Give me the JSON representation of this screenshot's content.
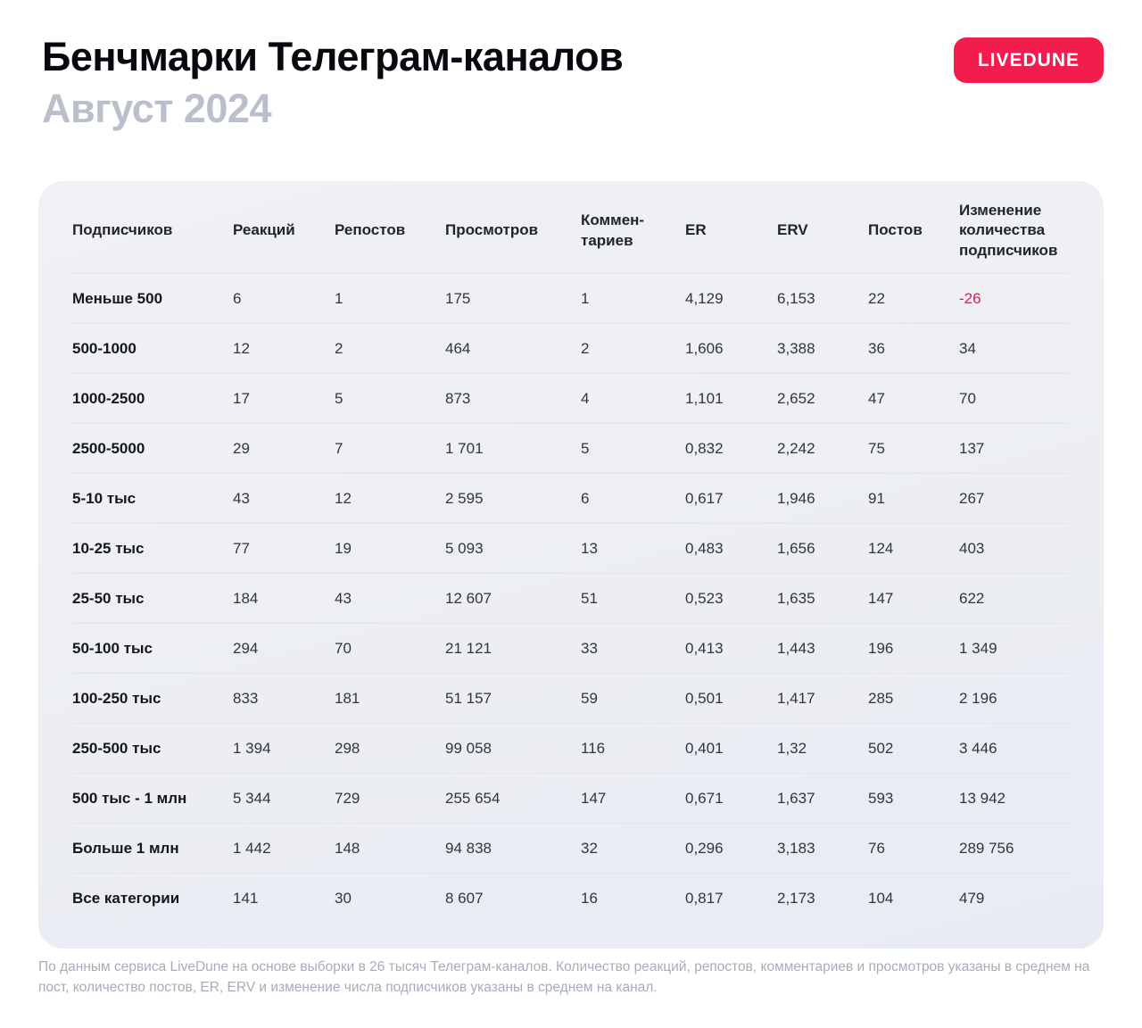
{
  "header": {
    "title": "Бенчмарки Телеграм-каналов",
    "subtitle": "Август 2024",
    "badge_label": "LIVEDUNE"
  },
  "colors": {
    "accent_red": "#f21c4d",
    "negative_value": "#e8174b",
    "panel_background": "#edeff3",
    "subtitle_gray": "#b9bfcb",
    "footnote_gray": "#a6acb9"
  },
  "footer": {
    "note": "По данным сервиса LiveDune на основе выборки в 26 тысяч Телеграм-каналов. Количество реакций, репостов, комментариев и просмотров указаны в среднем на пост, количество постов, ER, ERV и изменение числа подписчиков указаны в среднем на канал."
  },
  "chart_data": {
    "type": "table",
    "title": "Бенчмарки Телеграм-каналов",
    "subtitle": "Август 2024",
    "columns": [
      "Подписчиков",
      "Реакций",
      "Репостов",
      "Просмотров",
      "Коммен-тариев",
      "ER",
      "ERV",
      "Постов",
      "Изменение количества подписчиков"
    ],
    "rows": [
      [
        "Меньше 500",
        "6",
        "1",
        "175",
        "1",
        "4,129",
        "6,153",
        "22",
        "-26"
      ],
      [
        "500-1000",
        "12",
        "2",
        "464",
        "2",
        "1,606",
        "3,388",
        "36",
        "34"
      ],
      [
        "1000-2500",
        "17",
        "5",
        "873",
        "4",
        "1,101",
        "2,652",
        "47",
        "70"
      ],
      [
        "2500-5000",
        "29",
        "7",
        "1 701",
        "5",
        "0,832",
        "2,242",
        "75",
        "137"
      ],
      [
        "5-10 тыс",
        "43",
        "12",
        "2 595",
        "6",
        "0,617",
        "1,946",
        "91",
        "267"
      ],
      [
        "10-25 тыс",
        "77",
        "19",
        "5 093",
        "13",
        "0,483",
        "1,656",
        "124",
        "403"
      ],
      [
        "25-50 тыс",
        "184",
        "43",
        "12 607",
        "51",
        "0,523",
        "1,635",
        "147",
        "622"
      ],
      [
        "50-100 тыс",
        "294",
        "70",
        "21 121",
        "33",
        "0,413",
        "1,443",
        "196",
        "1 349"
      ],
      [
        "100-250 тыс",
        "833",
        "181",
        "51 157",
        "59",
        "0,501",
        "1,417",
        "285",
        "2 196"
      ],
      [
        "250-500 тыс",
        "1 394",
        "298",
        "99 058",
        "116",
        "0,401",
        "1,32",
        "502",
        "3 446"
      ],
      [
        "500 тыс - 1 млн",
        "5 344",
        "729",
        "255 654",
        "147",
        "0,671",
        "1,637",
        "593",
        "13 942"
      ],
      [
        "Больше 1 млн",
        "1 442",
        "148",
        "94 838",
        "32",
        "0,296",
        "3,183",
        "76",
        "289 756"
      ],
      [
        "Все категории",
        "141",
        "30",
        "8 607",
        "16",
        "0,817",
        "2,173",
        "104",
        "479"
      ]
    ]
  }
}
